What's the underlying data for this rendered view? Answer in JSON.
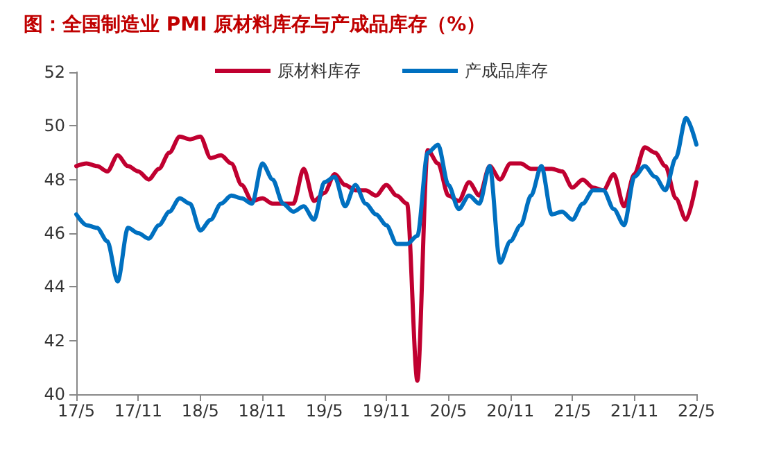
{
  "chart_data": {
    "type": "line",
    "title": "图：全国制造业 PMI 原材料库存与产成品库存（%）",
    "categories": [
      "17/5",
      null,
      null,
      null,
      null,
      null,
      "17/11",
      null,
      null,
      null,
      null,
      null,
      "18/5",
      null,
      null,
      null,
      null,
      null,
      "18/11",
      null,
      null,
      null,
      null,
      null,
      "19/5",
      null,
      null,
      null,
      null,
      null,
      "19/11",
      null,
      null,
      null,
      null,
      null,
      "20/5",
      null,
      null,
      null,
      null,
      null,
      "20/11",
      null,
      null,
      null,
      null,
      null,
      "21/5",
      null,
      null,
      null,
      null,
      null,
      "21/11",
      null,
      null,
      null,
      null,
      null,
      "22/5"
    ],
    "series": [
      {
        "name": "原材料库存",
        "color": "#c00030",
        "values": [
          48.5,
          48.6,
          48.5,
          48.3,
          48.9,
          48.5,
          48.3,
          48.0,
          48.4,
          49.0,
          49.6,
          49.5,
          49.6,
          48.8,
          48.9,
          48.6,
          47.8,
          47.2,
          47.3,
          47.1,
          47.1,
          47.1,
          48.4,
          47.2,
          47.5,
          48.2,
          47.8,
          47.6,
          47.6,
          47.4,
          47.8,
          47.4,
          47.1,
          40.5,
          49.1,
          48.6,
          47.4,
          47.2,
          47.9,
          47.4,
          48.5,
          48.0,
          48.6,
          48.6,
          48.4,
          48.4,
          48.4,
          48.3,
          47.7,
          48.0,
          47.7,
          47.6,
          48.2,
          47.0,
          48.2,
          49.2,
          49.0,
          48.5,
          47.3,
          46.5,
          47.9
        ]
      },
      {
        "name": "产成品库存",
        "color": "#0070c0",
        "values": [
          46.7,
          46.3,
          46.2,
          45.7,
          44.2,
          46.2,
          46.0,
          45.8,
          46.3,
          46.8,
          47.3,
          47.1,
          46.1,
          46.5,
          47.1,
          47.4,
          47.3,
          47.1,
          48.6,
          48.0,
          47.1,
          46.8,
          47.0,
          46.5,
          47.9,
          48.1,
          47.0,
          47.8,
          47.1,
          46.7,
          46.3,
          45.6,
          45.6,
          45.9,
          49.0,
          49.3,
          47.8,
          46.9,
          47.4,
          47.1,
          48.5,
          44.9,
          45.7,
          46.3,
          47.4,
          48.5,
          46.7,
          46.8,
          46.5,
          47.1,
          47.6,
          47.6,
          46.9,
          46.3,
          48.1,
          48.5,
          48.1,
          47.6,
          48.8,
          50.3,
          49.3
        ]
      }
    ],
    "ylim": [
      40,
      52
    ],
    "yticks": [
      40,
      42,
      44,
      46,
      48,
      50,
      52
    ],
    "grid": false,
    "legend": "top",
    "marker": "none",
    "line_style": "solid"
  }
}
